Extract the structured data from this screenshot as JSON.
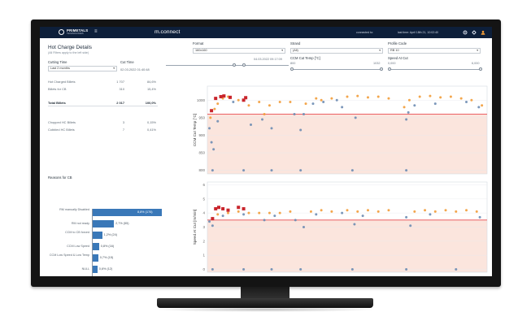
{
  "header": {
    "logo_name": "PRIMETALS",
    "logo_sub": "TECHNOLOGIES",
    "menu_icon": "≡",
    "app_title": "m.connect",
    "connected": "connected to:",
    "last_time": "last time: April 18th 21, 10:02:40"
  },
  "left": {
    "title": "Hot Charge Details",
    "subtitle": "(All Filters apply to the left side)",
    "cutting_time_label": "Cutting Time",
    "cutting_time_value": "Last 2 months",
    "cut_time_label": "Cut Time",
    "cut_time_start": "02.03.2022 01:40:48",
    "cut_time_end": "04.03.2022 09:17:09",
    "stats": [
      {
        "label": "Hot Charged Billets",
        "value": "1 707",
        "pct": "84,6%",
        "bold": false
      },
      {
        "label": "Billets for CB",
        "value": "310",
        "pct": "15,4%",
        "bold": false
      },
      {
        "label": "Total Billets",
        "value": "2 017",
        "pct": "100,0%",
        "bold": true
      },
      {
        "label": "Chopped HC Billets",
        "value": "3",
        "pct": "0,15%",
        "bold": false
      },
      {
        "label": "Cobbled HC Billets",
        "value": "7",
        "pct": "0,41%",
        "bold": false
      }
    ],
    "reasons_title": "Reasons for CB",
    "reasons": [
      {
        "label": "RM manually Disabled",
        "value_text": "8,8% (176)",
        "pct": 8.8
      },
      {
        "label": "RM not ready",
        "value_text": "2,7% (55)",
        "pct": 2.7
      },
      {
        "label": "CCM to CB forced",
        "value_text": "1,2% (24)",
        "pct": 1.2
      },
      {
        "label": "CCM Low Speed",
        "value_text": "0,8% (16)",
        "pct": 0.8
      },
      {
        "label": "CCM Low Speed & Low Temp",
        "value_text": "0,7% (15)",
        "pct": 0.7
      },
      {
        "label": "NULL",
        "value_text": "0,6% (12)",
        "pct": 0.6
      },
      {
        "label": "Other",
        "value_text": "0,3% (6)",
        "pct": 0.3
      }
    ]
  },
  "filters": {
    "format_label": "Format",
    "format_value": "160x160",
    "strand_label": "Strand",
    "strand_value": "(All)",
    "profile_label": "Profile Code",
    "profile_value": "RB 10",
    "temp_label": "CCM Cut Temp [°C]",
    "temp_min": "800",
    "temp_max": "1032",
    "speed_label": "Speed At Cut",
    "speed_min": "0,000",
    "speed_max": "6,000",
    "dropdown_arrow": "▾"
  },
  "chart_data": [
    {
      "type": "scatter",
      "ylabel": "CCM Cut Temp [°C]",
      "yticks": [
        "800",
        "850",
        "900",
        "950",
        "1000"
      ],
      "ylim": [
        790,
        1040
      ],
      "threshold": 960,
      "series": [
        {
          "values": [
            [
              0.3,
              950
            ],
            [
              0.7,
              975
            ],
            [
              1.0,
              990
            ],
            [
              1.5,
              1005
            ],
            [
              2.0,
              1010
            ],
            [
              3.0,
              1000
            ],
            [
              4.0,
              985
            ],
            [
              5.0,
              995
            ],
            [
              5.5,
              960
            ],
            [
              6.0,
              985
            ],
            [
              7.0,
              995
            ],
            [
              8.0,
              995
            ],
            [
              9.5,
              990
            ],
            [
              10.5,
              1005
            ],
            [
              11.0,
              1000
            ],
            [
              12.0,
              1005
            ],
            [
              13.5,
              1010
            ],
            [
              14.5,
              1012
            ],
            [
              15.5,
              1008
            ],
            [
              16.5,
              1010
            ],
            [
              17.5,
              1005
            ],
            [
              19.0,
              980
            ],
            [
              19.5,
              1000
            ],
            [
              20.5,
              1010
            ],
            [
              21.5,
              1012
            ],
            [
              22.5,
              1008
            ],
            [
              23.5,
              1010
            ],
            [
              24.5,
              1005
            ],
            [
              25.5,
              1000
            ],
            [
              26.5,
              985
            ]
          ]
        },
        {
          "values": [
            [
              0.2,
              920
            ],
            [
              0.4,
              880
            ],
            [
              0.6,
              860
            ],
            [
              1.0,
              940
            ],
            [
              2.5,
              995
            ],
            [
              4.2,
              930
            ],
            [
              5.3,
              945
            ],
            [
              6.2,
              920
            ],
            [
              8.4,
              960
            ],
            [
              9.0,
              915
            ],
            [
              9.3,
              960
            ],
            [
              10.2,
              990
            ],
            [
              11.2,
              995
            ],
            [
              12.5,
              1000
            ],
            [
              13.0,
              980
            ],
            [
              14.3,
              950
            ],
            [
              19.2,
              945
            ],
            [
              19.4,
              965
            ],
            [
              20.0,
              985
            ],
            [
              22.0,
              990
            ],
            [
              25.0,
              995
            ],
            [
              26.2,
              980
            ]
          ]
        },
        {
          "values": [
            [
              0.4,
              970
            ],
            [
              0.8,
              1005
            ],
            [
              1.3,
              1010
            ],
            [
              1.6,
              1012
            ],
            [
              2.2,
              1008
            ],
            [
              3.5,
              1000
            ],
            [
              3.7,
              1007
            ]
          ]
        },
        {
          "values": [
            [
              0.5,
              800
            ],
            [
              3.5,
              800
            ],
            [
              6.2,
              800
            ],
            [
              9.0,
              800
            ],
            [
              14.0,
              800
            ],
            [
              19.2,
              800
            ]
          ]
        }
      ]
    },
    {
      "type": "scatter",
      "ylabel": "Speed At Cut [m/min]",
      "yticks": [
        "0",
        "1",
        "2",
        "3",
        "4",
        "5",
        "6"
      ],
      "ylim": [
        -0.2,
        6.2
      ],
      "threshold": 3.5,
      "series": [
        {
          "values": [
            [
              1.0,
              3.9
            ],
            [
              2.0,
              4.0
            ],
            [
              3.0,
              4.1
            ],
            [
              4.0,
              4.0
            ],
            [
              5.0,
              4.0
            ],
            [
              6.0,
              4.0
            ],
            [
              7.0,
              4.0
            ],
            [
              8.0,
              4.1
            ],
            [
              10.0,
              4.1
            ],
            [
              11.0,
              4.2
            ],
            [
              12.0,
              4.1
            ],
            [
              13.5,
              4.2
            ],
            [
              14.5,
              4.1
            ],
            [
              15.5,
              4.2
            ],
            [
              16.5,
              4.1
            ],
            [
              17.5,
              4.2
            ],
            [
              20.0,
              4.1
            ],
            [
              21.0,
              4.2
            ],
            [
              22.0,
              4.1
            ],
            [
              23.0,
              4.2
            ],
            [
              24.0,
              4.1
            ],
            [
              25.0,
              4.2
            ],
            [
              26.0,
              4.1
            ]
          ]
        },
        {
          "values": [
            [
              0.2,
              3.4
            ],
            [
              0.5,
              3.1
            ],
            [
              1.5,
              3.8
            ],
            [
              3.5,
              3.9
            ],
            [
              5.5,
              3.5
            ],
            [
              6.5,
              3.8
            ],
            [
              8.5,
              3.5
            ],
            [
              9.3,
              3.0
            ],
            [
              10.5,
              3.9
            ],
            [
              13.0,
              4.0
            ],
            [
              14.2,
              3.2
            ],
            [
              15.0,
              3.8
            ],
            [
              19.2,
              3.7
            ],
            [
              19.6,
              3.1
            ],
            [
              21.5,
              3.9
            ],
            [
              26.3,
              3.7
            ]
          ]
        },
        {
          "values": [
            [
              0.5,
              3.6
            ],
            [
              0.8,
              4.3
            ],
            [
              1.1,
              4.4
            ],
            [
              1.5,
              4.3
            ],
            [
              2.0,
              4.2
            ],
            [
              3.0,
              4.4
            ],
            [
              3.5,
              4.3
            ]
          ]
        },
        {
          "values": [
            [
              0.5,
              0.0
            ],
            [
              3.5,
              0.0
            ],
            [
              6.2,
              0.0
            ],
            [
              9.0,
              0.0
            ],
            [
              14.0,
              0.0
            ],
            [
              19.2,
              0.0
            ],
            [
              24.0,
              0.0
            ]
          ]
        }
      ]
    }
  ],
  "colors": {
    "accent": "#3a78b8",
    "header": "#0d1f3a",
    "orange": "#f29c38",
    "grey_blue": "#6d8cb3",
    "red": "#c9252c",
    "threshold": "#e8474c",
    "band": "#fbe5dd"
  }
}
